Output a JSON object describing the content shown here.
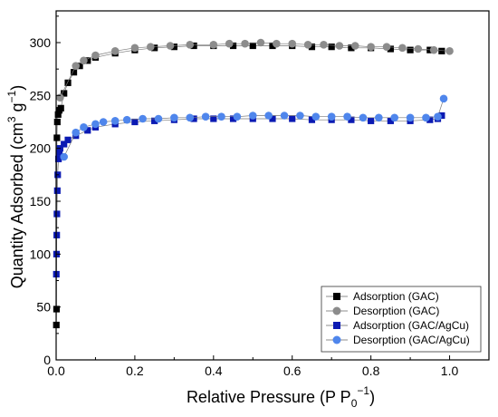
{
  "chart_data": {
    "type": "scatter",
    "title": "",
    "xlabel": "Relative Pressure (P P",
    "xlabel_sub": "0",
    "xlabel_sup": "−1",
    "xlabel_end": ")",
    "ylabel": "Quantity Adsorbed (cm",
    "ylabel_sup1": "3",
    "ylabel_mid": " g",
    "ylabel_sup2": "−1",
    "ylabel_end": ")",
    "xlim": [
      0,
      1.1
    ],
    "ylim": [
      0,
      330
    ],
    "x_ticks": [
      0.0,
      0.2,
      0.4,
      0.6,
      0.8,
      1.0
    ],
    "x_tick_labels": [
      "0.0",
      "0.2",
      "0.4",
      "0.6",
      "0.8",
      "1.0"
    ],
    "y_ticks": [
      0,
      50,
      100,
      150,
      200,
      250,
      300
    ],
    "y_tick_labels": [
      "0",
      "50",
      "100",
      "150",
      "200",
      "250",
      "300"
    ],
    "grid": false,
    "legend_position": "bottom-right",
    "series": [
      {
        "name": "Adsorption (GAC)",
        "marker": "square",
        "color": "#000000",
        "x": [
          0.0005,
          0.001,
          0.002,
          0.003,
          0.005,
          0.008,
          0.012,
          0.02,
          0.03,
          0.045,
          0.06,
          0.08,
          0.1,
          0.15,
          0.2,
          0.25,
          0.3,
          0.35,
          0.4,
          0.45,
          0.5,
          0.55,
          0.6,
          0.65,
          0.7,
          0.75,
          0.8,
          0.85,
          0.9,
          0.95,
          0.98
        ],
        "y": [
          33,
          48,
          210,
          225,
          232,
          236,
          238,
          252,
          262,
          272,
          278,
          283,
          286,
          290,
          293,
          295,
          296,
          297,
          297,
          297,
          297,
          297,
          297,
          296,
          296,
          295,
          295,
          294,
          293,
          293,
          292
        ]
      },
      {
        "name": "Desorption (GAC)",
        "marker": "circle",
        "color": "#8c8c8c",
        "x": [
          1.0,
          0.96,
          0.92,
          0.88,
          0.84,
          0.8,
          0.76,
          0.72,
          0.68,
          0.64,
          0.6,
          0.56,
          0.52,
          0.48,
          0.44,
          0.4,
          0.34,
          0.29,
          0.24,
          0.2,
          0.15,
          0.1,
          0.07,
          0.05,
          0.01
        ],
        "y": [
          292,
          293,
          294,
          295,
          296,
          296,
          297,
          297,
          298,
          298,
          299,
          299,
          300,
          299,
          299,
          298,
          298,
          297,
          296,
          295,
          292,
          288,
          283,
          278,
          248
        ]
      },
      {
        "name": "Adsorption (GAC/AgCu)",
        "marker": "square",
        "color": "#0b1ab3",
        "x": [
          0.0005,
          0.001,
          0.0015,
          0.002,
          0.003,
          0.004,
          0.006,
          0.008,
          0.01,
          0.02,
          0.03,
          0.05,
          0.08,
          0.1,
          0.15,
          0.2,
          0.25,
          0.3,
          0.35,
          0.4,
          0.45,
          0.5,
          0.55,
          0.6,
          0.65,
          0.7,
          0.75,
          0.8,
          0.85,
          0.9,
          0.95,
          0.97,
          0.98
        ],
        "y": [
          81,
          100,
          118,
          138,
          160,
          175,
          190,
          196,
          200,
          204,
          208,
          212,
          217,
          220,
          223,
          225,
          226,
          227,
          228,
          228,
          228,
          228,
          228,
          228,
          227,
          227,
          227,
          226,
          226,
          226,
          227,
          228,
          231
        ]
      },
      {
        "name": "Desorption (GAC/AgCu)",
        "marker": "circle",
        "color": "#4f86ec",
        "x": [
          0.985,
          0.97,
          0.94,
          0.9,
          0.86,
          0.82,
          0.78,
          0.74,
          0.7,
          0.66,
          0.62,
          0.58,
          0.54,
          0.5,
          0.46,
          0.42,
          0.38,
          0.34,
          0.3,
          0.26,
          0.22,
          0.18,
          0.15,
          0.12,
          0.1,
          0.07,
          0.05,
          0.02
        ],
        "y": [
          247,
          230,
          229,
          229,
          229,
          229,
          229,
          230,
          230,
          230,
          231,
          231,
          231,
          231,
          230,
          230,
          230,
          229,
          229,
          228,
          228,
          227,
          226,
          225,
          223,
          220,
          215,
          192
        ]
      }
    ]
  }
}
